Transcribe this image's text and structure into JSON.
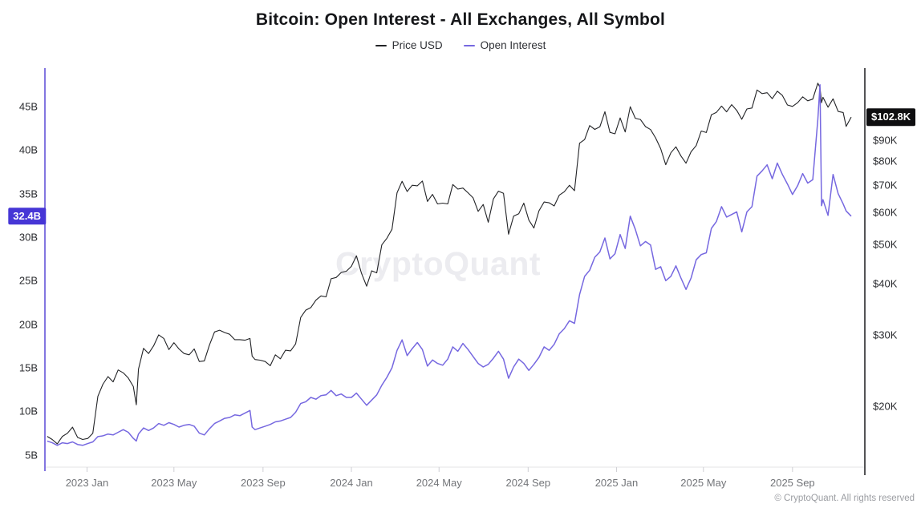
{
  "page": {
    "background": "#ffffff"
  },
  "chart_data": {
    "type": "line",
    "title": "Bitcoin: Open Interest - All Exchanges, All Symbol",
    "watermark": "CryptoQuant",
    "footer": "© CryptoQuant. All rights reserved",
    "grid": false,
    "legend_position": "top-center",
    "x_domain": [
      "2022-11-05",
      "2025-12-01"
    ],
    "x_ticks": [
      {
        "date": "2023-01-01",
        "label": "2023 Jan"
      },
      {
        "date": "2023-05-01",
        "label": "2023 May"
      },
      {
        "date": "2023-09-01",
        "label": "2023 Sep"
      },
      {
        "date": "2024-01-01",
        "label": "2024 Jan"
      },
      {
        "date": "2024-05-01",
        "label": "2024 May"
      },
      {
        "date": "2024-09-01",
        "label": "2024 Sep"
      },
      {
        "date": "2025-01-01",
        "label": "2025 Jan"
      },
      {
        "date": "2025-05-01",
        "label": "2025 May"
      },
      {
        "date": "2025-09-01",
        "label": "2025 Sep"
      }
    ],
    "left_axis": {
      "name": "Open Interest",
      "unit": "billion USD",
      "scale": "linear",
      "range": [
        3.6,
        49.4
      ],
      "spine_color": "#5a49d6",
      "ticks": [
        {
          "value": 5,
          "label": "5B"
        },
        {
          "value": 10,
          "label": "10B"
        },
        {
          "value": 15,
          "label": "15B"
        },
        {
          "value": 20,
          "label": "20B"
        },
        {
          "value": 25,
          "label": "25B"
        },
        {
          "value": 30,
          "label": "30B"
        },
        {
          "value": 35,
          "label": "35B"
        },
        {
          "value": 40,
          "label": "40B"
        },
        {
          "value": 45,
          "label": "45B"
        }
      ],
      "current": {
        "value": 32.4,
        "label": "32.4B",
        "badge_color": "#4636d6"
      }
    },
    "right_axis": {
      "name": "Price USD",
      "unit": "thousand USD",
      "scale": "log",
      "range": [
        14.2,
        135.6
      ],
      "spine_color": "#1c1c1e",
      "ticks": [
        {
          "value": 20,
          "label": "$20K"
        },
        {
          "value": 30,
          "label": "$30K"
        },
        {
          "value": 40,
          "label": "$40K"
        },
        {
          "value": 50,
          "label": "$50K"
        },
        {
          "value": 60,
          "label": "$60K"
        },
        {
          "value": 70,
          "label": "$70K"
        },
        {
          "value": 80,
          "label": "$80K"
        },
        {
          "value": 90,
          "label": "$90K"
        }
      ],
      "current": {
        "value": 102.8,
        "label": "$102.8K",
        "badge_color": "#0e0e10"
      }
    },
    "series": [
      {
        "name": "Price USD",
        "axis": "right",
        "color": "#222326",
        "width": 1.1
      },
      {
        "name": "Open Interest",
        "axis": "left",
        "color": "#7668e0",
        "width": 1.5
      }
    ],
    "points_format": [
      "date",
      "price_usd_k",
      "open_interest_b"
    ],
    "points": [
      [
        "2022-11-07",
        16.9,
        6.6
      ],
      [
        "2022-11-14",
        16.6,
        6.4
      ],
      [
        "2022-11-21",
        16.2,
        6.1
      ],
      [
        "2022-11-28",
        16.9,
        6.4
      ],
      [
        "2022-12-05",
        17.2,
        6.3
      ],
      [
        "2022-12-12",
        17.8,
        6.5
      ],
      [
        "2022-12-19",
        16.8,
        6.2
      ],
      [
        "2022-12-26",
        16.6,
        6.1
      ],
      [
        "2023-01-02",
        16.7,
        6.3
      ],
      [
        "2023-01-09",
        17.2,
        6.5
      ],
      [
        "2023-01-16",
        21.2,
        7.1
      ],
      [
        "2023-01-23",
        22.7,
        7.2
      ],
      [
        "2023-01-30",
        23.7,
        7.4
      ],
      [
        "2023-02-06",
        23.0,
        7.3
      ],
      [
        "2023-02-13",
        24.6,
        7.6
      ],
      [
        "2023-02-20",
        24.2,
        7.9
      ],
      [
        "2023-02-27",
        23.5,
        7.6
      ],
      [
        "2023-03-06",
        22.4,
        6.9
      ],
      [
        "2023-03-10",
        20.2,
        6.6
      ],
      [
        "2023-03-13",
        24.7,
        7.4
      ],
      [
        "2023-03-20",
        27.8,
        8.1
      ],
      [
        "2023-03-27",
        27.0,
        7.8
      ],
      [
        "2023-04-03",
        28.2,
        8.1
      ],
      [
        "2023-04-10",
        30.0,
        8.6
      ],
      [
        "2023-04-17",
        29.4,
        8.4
      ],
      [
        "2023-04-24",
        27.6,
        8.7
      ],
      [
        "2023-05-01",
        28.7,
        8.5
      ],
      [
        "2023-05-08",
        27.7,
        8.2
      ],
      [
        "2023-05-15",
        27.0,
        8.4
      ],
      [
        "2023-05-22",
        26.8,
        8.5
      ],
      [
        "2023-05-29",
        27.7,
        8.3
      ],
      [
        "2023-06-05",
        25.8,
        7.5
      ],
      [
        "2023-06-12",
        25.9,
        7.3
      ],
      [
        "2023-06-19",
        28.3,
        8.0
      ],
      [
        "2023-06-26",
        30.5,
        8.6
      ],
      [
        "2023-07-03",
        30.8,
        8.9
      ],
      [
        "2023-07-10",
        30.4,
        9.2
      ],
      [
        "2023-07-17",
        30.1,
        9.3
      ],
      [
        "2023-07-24",
        29.2,
        9.6
      ],
      [
        "2023-07-31",
        29.2,
        9.5
      ],
      [
        "2023-08-07",
        29.1,
        9.8
      ],
      [
        "2023-08-14",
        29.4,
        10.1
      ],
      [
        "2023-08-17",
        26.6,
        8.2
      ],
      [
        "2023-08-21",
        26.1,
        7.9
      ],
      [
        "2023-08-28",
        26.0,
        8.1
      ],
      [
        "2023-09-04",
        25.8,
        8.3
      ],
      [
        "2023-09-11",
        25.2,
        8.5
      ],
      [
        "2023-09-18",
        26.8,
        8.8
      ],
      [
        "2023-09-25",
        26.2,
        8.9
      ],
      [
        "2023-10-02",
        27.5,
        9.1
      ],
      [
        "2023-10-09",
        27.4,
        9.3
      ],
      [
        "2023-10-16",
        28.5,
        9.9
      ],
      [
        "2023-10-23",
        33.1,
        10.9
      ],
      [
        "2023-10-30",
        34.5,
        11.1
      ],
      [
        "2023-11-06",
        35.0,
        11.6
      ],
      [
        "2023-11-13",
        36.5,
        11.4
      ],
      [
        "2023-11-20",
        37.4,
        11.8
      ],
      [
        "2023-11-27",
        37.2,
        11.9
      ],
      [
        "2023-12-04",
        41.2,
        12.4
      ],
      [
        "2023-12-11",
        41.5,
        11.8
      ],
      [
        "2023-12-18",
        42.7,
        12.0
      ],
      [
        "2023-12-25",
        43.0,
        11.6
      ],
      [
        "2024-01-01",
        44.2,
        11.6
      ],
      [
        "2024-01-08",
        46.9,
        12.1
      ],
      [
        "2024-01-15",
        42.5,
        11.4
      ],
      [
        "2024-01-22",
        39.5,
        10.7
      ],
      [
        "2024-01-29",
        43.1,
        11.3
      ],
      [
        "2024-02-05",
        42.6,
        11.9
      ],
      [
        "2024-02-12",
        49.9,
        13.0
      ],
      [
        "2024-02-19",
        51.8,
        13.9
      ],
      [
        "2024-02-26",
        54.5,
        15.0
      ],
      [
        "2024-03-04",
        67.0,
        17.0
      ],
      [
        "2024-03-11",
        71.5,
        18.2
      ],
      [
        "2024-03-18",
        67.5,
        16.4
      ],
      [
        "2024-03-25",
        69.9,
        17.2
      ],
      [
        "2024-04-01",
        69.7,
        17.9
      ],
      [
        "2024-04-08",
        71.6,
        17.1
      ],
      [
        "2024-04-15",
        63.8,
        15.2
      ],
      [
        "2024-04-22",
        66.4,
        15.9
      ],
      [
        "2024-04-29",
        62.9,
        15.5
      ],
      [
        "2024-05-06",
        63.2,
        15.3
      ],
      [
        "2024-05-13",
        62.9,
        16.0
      ],
      [
        "2024-05-20",
        70.2,
        17.4
      ],
      [
        "2024-05-27",
        68.4,
        16.9
      ],
      [
        "2024-06-03",
        68.8,
        17.8
      ],
      [
        "2024-06-10",
        67.0,
        17.1
      ],
      [
        "2024-06-17",
        65.1,
        16.3
      ],
      [
        "2024-06-24",
        60.3,
        15.5
      ],
      [
        "2024-07-01",
        62.7,
        15.1
      ],
      [
        "2024-07-08",
        56.7,
        15.4
      ],
      [
        "2024-07-15",
        64.7,
        16.1
      ],
      [
        "2024-07-22",
        67.6,
        16.9
      ],
      [
        "2024-07-29",
        66.8,
        16.0
      ],
      [
        "2024-08-05",
        53.0,
        13.8
      ],
      [
        "2024-08-12",
        58.7,
        15.1
      ],
      [
        "2024-08-19",
        59.5,
        16.0
      ],
      [
        "2024-08-26",
        63.2,
        15.5
      ],
      [
        "2024-09-02",
        57.4,
        14.7
      ],
      [
        "2024-09-09",
        54.9,
        15.4
      ],
      [
        "2024-09-16",
        60.5,
        16.2
      ],
      [
        "2024-09-23",
        63.6,
        17.4
      ],
      [
        "2024-09-30",
        63.3,
        17.0
      ],
      [
        "2024-10-07",
        62.2,
        17.7
      ],
      [
        "2024-10-14",
        66.1,
        18.9
      ],
      [
        "2024-10-21",
        67.4,
        19.5
      ],
      [
        "2024-10-28",
        69.9,
        20.4
      ],
      [
        "2024-11-04",
        67.8,
        20.1
      ],
      [
        "2024-11-11",
        88.7,
        23.4
      ],
      [
        "2024-11-18",
        90.5,
        25.5
      ],
      [
        "2024-11-25",
        98.0,
        26.2
      ],
      [
        "2024-12-02",
        95.9,
        27.7
      ],
      [
        "2024-12-09",
        97.3,
        28.3
      ],
      [
        "2024-12-16",
        106.0,
        29.9
      ],
      [
        "2024-12-23",
        94.3,
        27.5
      ],
      [
        "2024-12-30",
        93.5,
        28.1
      ],
      [
        "2025-01-06",
        102.3,
        30.3
      ],
      [
        "2025-01-13",
        94.5,
        28.7
      ],
      [
        "2025-01-20",
        109.0,
        32.4
      ],
      [
        "2025-01-27",
        102.1,
        30.9
      ],
      [
        "2025-02-03",
        101.4,
        29.0
      ],
      [
        "2025-02-10",
        97.4,
        29.5
      ],
      [
        "2025-02-17",
        95.8,
        29.1
      ],
      [
        "2025-02-24",
        91.4,
        26.3
      ],
      [
        "2025-03-03",
        86.0,
        26.6
      ],
      [
        "2025-03-10",
        78.5,
        25.0
      ],
      [
        "2025-03-17",
        84.0,
        25.5
      ],
      [
        "2025-03-24",
        86.9,
        26.7
      ],
      [
        "2025-03-31",
        82.5,
        25.3
      ],
      [
        "2025-04-07",
        79.2,
        24.0
      ],
      [
        "2025-04-14",
        84.5,
        25.3
      ],
      [
        "2025-04-21",
        87.5,
        27.4
      ],
      [
        "2025-04-28",
        95.0,
        28.0
      ],
      [
        "2025-05-05",
        94.2,
        28.2
      ],
      [
        "2025-05-12",
        104.1,
        31.0
      ],
      [
        "2025-05-19",
        105.6,
        31.8
      ],
      [
        "2025-05-26",
        109.4,
        33.5
      ],
      [
        "2025-06-02",
        105.9,
        32.3
      ],
      [
        "2025-06-09",
        110.3,
        32.6
      ],
      [
        "2025-06-16",
        106.8,
        32.9
      ],
      [
        "2025-06-23",
        101.5,
        30.6
      ],
      [
        "2025-06-30",
        107.6,
        32.9
      ],
      [
        "2025-07-07",
        108.2,
        33.5
      ],
      [
        "2025-07-14",
        119.8,
        37.0
      ],
      [
        "2025-07-21",
        117.4,
        37.6
      ],
      [
        "2025-07-28",
        118.0,
        38.3
      ],
      [
        "2025-08-04",
        114.1,
        36.7
      ],
      [
        "2025-08-11",
        119.0,
        38.5
      ],
      [
        "2025-08-18",
        116.2,
        37.2
      ],
      [
        "2025-08-25",
        110.1,
        36.1
      ],
      [
        "2025-09-01",
        109.2,
        34.9
      ],
      [
        "2025-09-08",
        111.5,
        35.9
      ],
      [
        "2025-09-15",
        115.3,
        37.3
      ],
      [
        "2025-09-22",
        112.7,
        36.2
      ],
      [
        "2025-09-29",
        113.8,
        36.6
      ],
      [
        "2025-10-06",
        124.5,
        43.5
      ],
      [
        "2025-10-09",
        121.5,
        47.5
      ],
      [
        "2025-10-11",
        111.5,
        33.6
      ],
      [
        "2025-10-13",
        115.0,
        34.3
      ],
      [
        "2025-10-20",
        108.7,
        32.5
      ],
      [
        "2025-10-27",
        114.0,
        37.2
      ],
      [
        "2025-11-03",
        106.1,
        35.0
      ],
      [
        "2025-11-10",
        105.5,
        33.8
      ],
      [
        "2025-11-14",
        97.5,
        33.0
      ],
      [
        "2025-11-21",
        102.8,
        32.4
      ]
    ]
  }
}
